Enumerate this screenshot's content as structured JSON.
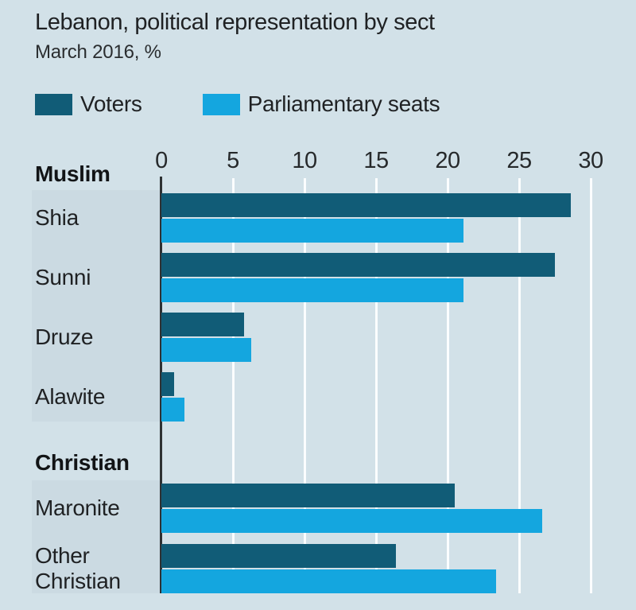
{
  "title": "Lebanon, political representation by sect",
  "subtitle": "March 2016, %",
  "legend": {
    "items": [
      {
        "label": "Voters",
        "color": "#115c77"
      },
      {
        "label": "Parliamentary seats",
        "color": "#14a6df"
      }
    ]
  },
  "colors": {
    "background": "#d2e1e8",
    "label_strip": "#cbdae2",
    "gridline": "#fbfdfe",
    "axis_line": "#2e3133",
    "text": "#1f2123",
    "voters_bar": "#115c77",
    "seats_bar": "#14a6df"
  },
  "chart_data": {
    "type": "bar",
    "orientation": "horizontal",
    "title": "Lebanon, political representation by sect",
    "subtitle": "March 2016, %",
    "unit": "%",
    "xlim": [
      0,
      30
    ],
    "xticks": [
      0,
      5,
      10,
      15,
      20,
      25,
      30
    ],
    "grid": "vertical white gridlines every 5",
    "legend_position": "top-left",
    "series": [
      {
        "name": "Voters",
        "color": "#115c77"
      },
      {
        "name": "Parliamentary seats",
        "color": "#14a6df"
      }
    ],
    "sections": [
      {
        "label": "Muslim",
        "rows": [
          {
            "label": "Shia",
            "values": [
              28.6,
              21.1
            ]
          },
          {
            "label": "Sunni",
            "values": [
              27.5,
              21.1
            ]
          },
          {
            "label": "Druze",
            "values": [
              5.8,
              6.3
            ]
          },
          {
            "label": "Alawite",
            "values": [
              0.9,
              1.6
            ]
          }
        ]
      },
      {
        "label": "Christian",
        "rows": [
          {
            "label": "Maronite",
            "values": [
              20.5,
              26.6
            ]
          },
          {
            "label": "Other Christian",
            "values": [
              16.4,
              23.4
            ]
          }
        ]
      }
    ]
  }
}
